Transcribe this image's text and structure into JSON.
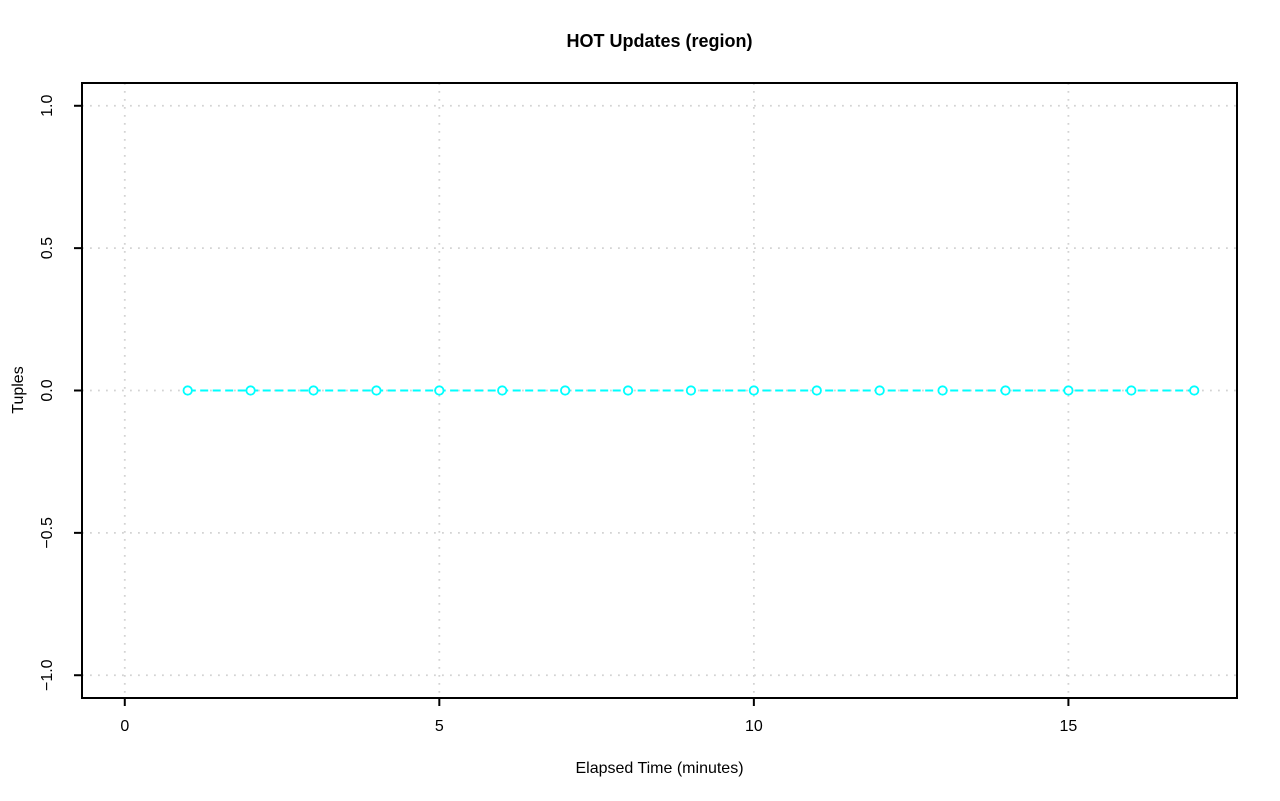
{
  "chart_data": {
    "type": "scatter",
    "title": "HOT Updates (region)",
    "xlabel": "Elapsed Time (minutes)",
    "ylabel": "Tuples",
    "x": [
      1,
      2,
      3,
      4,
      5,
      6,
      7,
      8,
      9,
      10,
      11,
      12,
      13,
      14,
      15,
      16,
      17
    ],
    "y": [
      0,
      0,
      0,
      0,
      0,
      0,
      0,
      0,
      0,
      0,
      0,
      0,
      0,
      0,
      0,
      0,
      0
    ],
    "marker": "open-circle",
    "line_style": "dashed",
    "series_color": "#00ffff",
    "grid": true,
    "grid_style": "dotted",
    "grid_color": "#d3d3d3",
    "axis_color": "#000000",
    "background_color": "#ffffff",
    "xlim": [
      -0.68,
      17.68
    ],
    "ylim": [
      -1.08,
      1.08
    ],
    "x_ticks": [
      {
        "value": 0,
        "label": "0"
      },
      {
        "value": 5,
        "label": "5"
      },
      {
        "value": 10,
        "label": "10"
      },
      {
        "value": 15,
        "label": "15"
      }
    ],
    "y_ticks": [
      {
        "value": -1.0,
        "label": "−1.0"
      },
      {
        "value": -0.5,
        "label": "−0.5"
      },
      {
        "value": 0.0,
        "label": "0.0"
      },
      {
        "value": 0.5,
        "label": "0.5"
      },
      {
        "value": 1.0,
        "label": "1.0"
      }
    ],
    "legend": "none"
  }
}
